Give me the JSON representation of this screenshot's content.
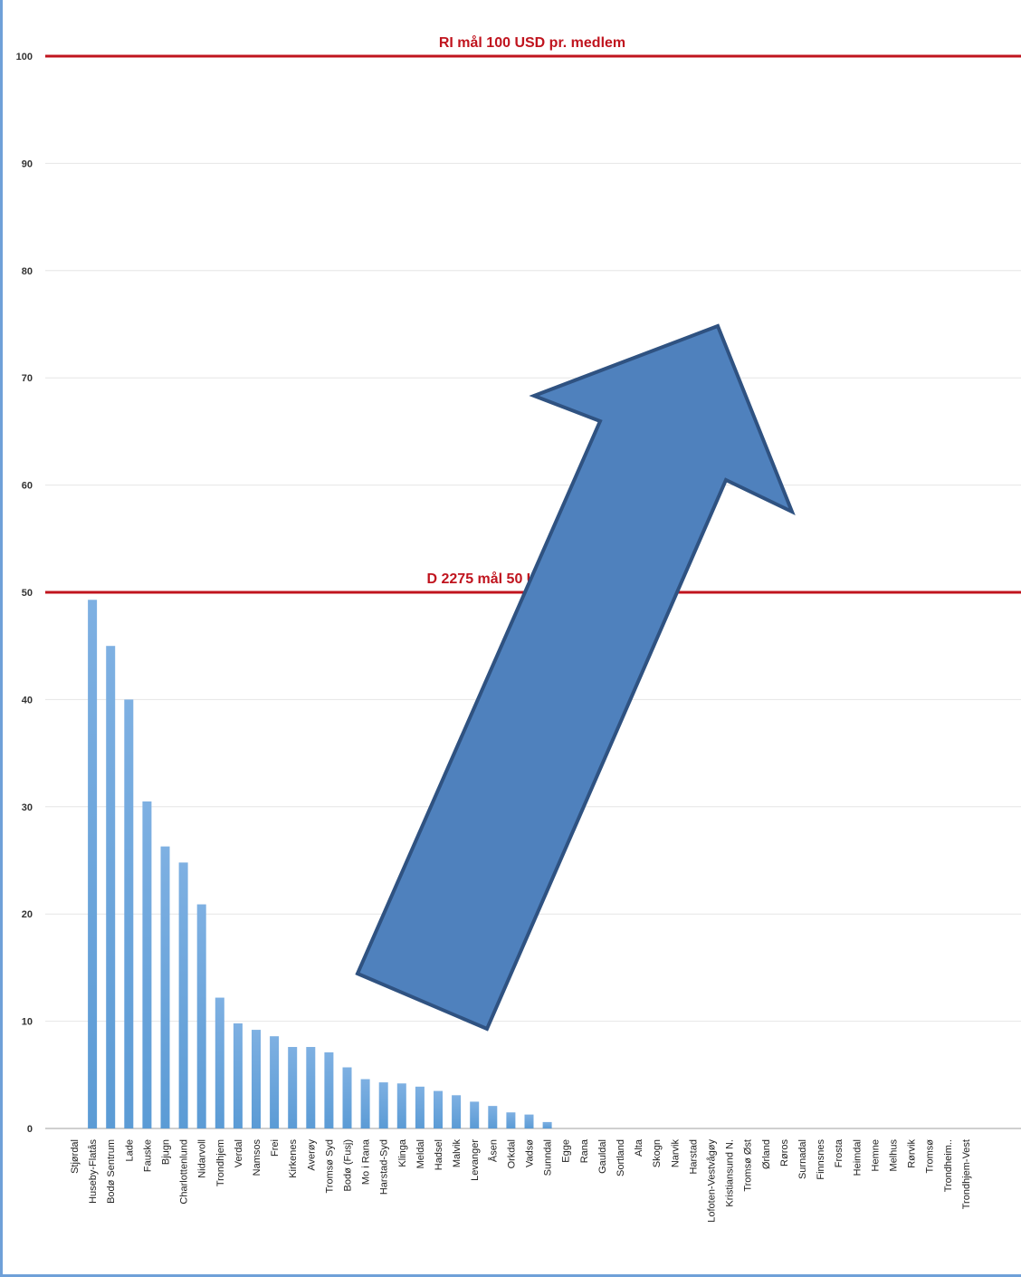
{
  "chart_data": {
    "type": "bar",
    "title": "",
    "xlabel": "",
    "ylabel": "",
    "ylim": [
      0,
      100
    ],
    "yticks": [
      0,
      10,
      20,
      30,
      40,
      50,
      60,
      70,
      80,
      90,
      100
    ],
    "grid": true,
    "bar_color": "#5b9bd5",
    "categories": [
      "Stjørdal",
      "Huseby-Flatås",
      "Bodø Sentrum",
      "Lade",
      "Fauske",
      "Bjugn",
      "Charlottenlund",
      "Nidarvoll",
      "Trondhjem",
      "Verdal",
      "Namsos",
      "Frei",
      "Kirkenes",
      "Averøy",
      "Tromsø Syd",
      "Bodø (Fusj)",
      "Mo i Rana",
      "Harstad-Syd",
      "Klinga",
      "Meldal",
      "Hadsel",
      "Malvik",
      "Levanger",
      "Åsen",
      "Orkdal",
      "Vadsø",
      "Sunndal",
      "Egge",
      "Rana",
      "Gauldal",
      "Sortland",
      "Alta",
      "Skogn",
      "Narvik",
      "Harstad",
      "Lofoten-Vestvågøy",
      "Kristiansund N.",
      "Tromsø Øst",
      "Ørland",
      "Røros",
      "Surnadal",
      "Finnsnes",
      "Frosta",
      "Heimdal",
      "Hemne",
      "Melhus",
      "Rørvik",
      "Tromsø",
      "Trondheim..",
      "Trondhjem-Vest"
    ],
    "values": [
      0,
      49.3,
      45.0,
      40.0,
      30.5,
      26.3,
      24.8,
      20.9,
      12.2,
      9.8,
      9.2,
      8.6,
      7.6,
      7.6,
      7.1,
      5.7,
      4.6,
      4.3,
      4.2,
      3.9,
      3.5,
      3.1,
      2.5,
      2.1,
      1.5,
      1.3,
      0.6,
      0,
      0,
      0,
      0,
      0,
      0,
      0,
      0,
      0,
      0,
      0,
      0,
      0,
      0,
      0,
      0,
      0,
      0,
      0,
      0,
      0,
      0,
      0
    ],
    "reference_lines": [
      {
        "value": 100,
        "label": "RI  mål 100 USD pr. medlem",
        "color": "#c0141e"
      },
      {
        "value": 50,
        "label": "D 2275 mål 50 USD pr. medlem",
        "color": "#c0141e"
      }
    ],
    "annotation": {
      "shape": "arrow",
      "color": "#4f81bd",
      "outline": "#2f5281"
    }
  }
}
